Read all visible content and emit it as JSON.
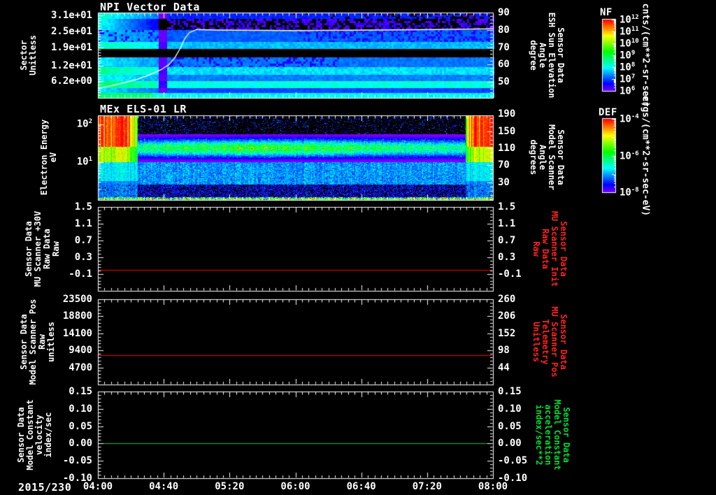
{
  "colors": {
    "background": "#000000",
    "foreground": "#ffffff",
    "red_label": "#ff2222",
    "red_line": "#ff0000",
    "green_label": "#00dd33",
    "green_line": "#00cc33",
    "overlay_line": "#ffffff"
  },
  "x_axis": {
    "date_label": "2015/230",
    "tick_labels": [
      "04:00",
      "04:40",
      "05:20",
      "06:00",
      "06:40",
      "07:20",
      "08:00"
    ]
  },
  "panel1": {
    "title": "NPI Vector Data",
    "ylabel_lines": [
      "Sector",
      "Unitless"
    ],
    "right_label_lines": [
      "Sensor Data",
      "ESH Sun Elevation",
      "Angle",
      "degree"
    ]
  },
  "panel2": {
    "title": "MEx ELS-01 LR",
    "ylabel_lines": [
      "Electron Energy",
      "eV"
    ],
    "right_label_lines": [
      "Sensor Data",
      "Model Scanner",
      "Angle",
      "degrees"
    ]
  },
  "panel3": {
    "ylabel_lines": [
      "Sensor Data",
      "MU Scanner +30V",
      "Raw Data",
      "Raw"
    ],
    "right_label_lines": [
      "Sensor Data",
      "MU Scanner Init",
      "Raw Data",
      "Raw"
    ]
  },
  "panel4": {
    "ylabel_lines": [
      "Sensor Data",
      "Model Scanner Pos",
      "Raw",
      "unitless"
    ],
    "right_label_lines": [
      "Sensor Data",
      "MU Scanner Pos",
      "Telemetry",
      "Unitless"
    ]
  },
  "panel5": {
    "ylabel_lines": [
      "Sensor Data",
      "Model Constant",
      "velocity",
      "index/sec"
    ],
    "right_label_lines": [
      "Sensor Data",
      "Model Constant",
      "acceleration",
      "index/sec**2"
    ]
  },
  "colorbar_nf": {
    "title": "NF",
    "unit": "cnts/(cm**2-sr-sec)",
    "tick_base": "10",
    "tick_exponents": [
      "12",
      "11",
      "10",
      "9",
      "8",
      "7",
      "6"
    ]
  },
  "colorbar_def": {
    "title": "DEF",
    "unit": "ergs/(cm**2-sr-sec-eV)",
    "tick_base": "10",
    "tick_exponents": [
      "-4",
      "-6",
      "-8"
    ]
  },
  "chart_data": [
    {
      "panel": 1,
      "type": "heatmap",
      "title": "NPI Vector Data",
      "x_range": [
        "2015/230 04:00",
        "2015/230 08:00"
      ],
      "y_axis": {
        "label": "Sector (Unitless)",
        "scale": "linear",
        "range": [
          0,
          32
        ],
        "ticks": [
          {
            "label": "3.1e+01",
            "value": 31
          },
          {
            "label": "2.5e+01",
            "value": 25
          },
          {
            "label": "1.9e+01",
            "value": 19
          },
          {
            "label": "1.2e+01",
            "value": 12
          },
          {
            "label": "6.2e+00",
            "value": 6.2
          }
        ]
      },
      "right_axis": {
        "label": "ESH Sun Elevation Angle (degree)",
        "range": [
          40.7,
          90
        ],
        "ticks": [
          90,
          80,
          70,
          60,
          50
        ]
      },
      "colorbar": "NF",
      "colorbar_range_exp": [
        6,
        12
      ],
      "overlay_series": {
        "name": "ESH Sun Elevation Angle",
        "units": "degree",
        "color": "#ffffff",
        "points": [
          [
            0,
            46
          ],
          [
            0.05,
            48.5
          ],
          [
            0.1,
            51.5
          ],
          [
            0.13,
            54
          ],
          [
            0.16,
            57
          ],
          [
            0.18,
            60
          ],
          [
            0.195,
            64
          ],
          [
            0.21,
            70
          ],
          [
            0.22,
            75
          ],
          [
            0.232,
            78.5
          ],
          [
            0.25,
            80.2
          ],
          [
            0.3,
            79.9
          ],
          [
            0.5,
            79.6
          ],
          [
            0.7,
            79.9
          ],
          [
            0.85,
            80.2
          ],
          [
            1,
            80.6
          ]
        ]
      },
      "bands": [
        [
          0,
          0.075,
          0.17,
          0.4,
          "blackright"
        ],
        [
          0.075,
          0.21,
          0,
          0.37,
          "purpledash"
        ],
        [
          0.21,
          0.35,
          0.22,
          0.3,
          "purplemix"
        ],
        [
          0.35,
          0.43,
          0.3,
          0.42,
          ""
        ],
        [
          0.43,
          0.53,
          0,
          0,
          "black"
        ],
        [
          0.53,
          0.64,
          0.24,
          0.34,
          "purpleleft"
        ],
        [
          0.64,
          0.73,
          0.33,
          0.44,
          ""
        ],
        [
          0.73,
          0.81,
          0.25,
          0.37,
          ""
        ],
        [
          0.81,
          0.89,
          0.38,
          0.47,
          ""
        ],
        [
          0.89,
          0.945,
          0.2,
          0.33,
          ""
        ],
        [
          0.945,
          1,
          0.36,
          0.5,
          "greencorner"
        ]
      ]
    },
    {
      "panel": 2,
      "type": "heatmap",
      "title": "MEx ELS-01 LR",
      "y_axis": {
        "label": "Electron Energy (eV)",
        "scale": "log",
        "range": [
          1,
          174
        ],
        "ticks": [
          {
            "label": "10^2",
            "value": 100
          },
          {
            "label": "10^1",
            "value": 10
          }
        ]
      },
      "right_axis": {
        "label": "Model Scanner Angle (degrees)",
        "ticks": [
          190,
          150,
          110,
          70,
          30
        ]
      },
      "colorbar": "DEF",
      "colorbar_range_exp": [
        -8,
        -4
      ],
      "features": {
        "left_blob_t_end": 0.075,
        "right_blob_t_start": 0.93,
        "blob_energy_min_log": 1.42,
        "mid_band_center_log": 1.38,
        "mid_band_sigma_log": 0.22,
        "energy_log_top": 2.24
      }
    },
    {
      "panel": 3,
      "type": "line",
      "y_axis": {
        "label": "MU Scanner +30V Raw Data (Raw)",
        "range": [
          -0.5,
          1.5
        ],
        "ticks": [
          {
            "label": "1.5",
            "value": 1.5
          },
          {
            "label": "1.1",
            "value": 1.1
          },
          {
            "label": "0.7",
            "value": 0.7
          },
          {
            "label": "0.3",
            "value": 0.3
          },
          {
            "label": "-0.1",
            "value": -0.1
          }
        ]
      },
      "right_axis": {
        "label": "MU Scanner Init Raw Data (Raw)",
        "ticks": [
          {
            "label": "1.5",
            "value": 1.5
          },
          {
            "label": "1.1",
            "value": 1.1
          },
          {
            "label": "0.7",
            "value": 0.7
          },
          {
            "label": "0.3",
            "value": 0.3
          },
          {
            "label": "-0.1",
            "value": -0.1
          }
        ]
      },
      "series": [
        {
          "name": "MU Scanner Init Raw Data",
          "color": "#ff0000",
          "constant_value": 0.0
        }
      ]
    },
    {
      "panel": 4,
      "type": "line",
      "y_axis": {
        "label": "Model Scanner Pos Raw (unitless)",
        "range": [
          0,
          23500
        ],
        "ticks": [
          {
            "label": "23500",
            "value": 23500
          },
          {
            "label": "18800",
            "value": 18800
          },
          {
            "label": "14100",
            "value": 14100
          },
          {
            "label": "9400",
            "value": 9400
          },
          {
            "label": "4700",
            "value": 4700
          }
        ]
      },
      "right_axis": {
        "label": "MU Scanner Pos Telemetry (Unitless)",
        "range": [
          -10,
          260
        ],
        "ticks": [
          {
            "label": "260",
            "value": 260
          },
          {
            "label": "206",
            "value": 206
          },
          {
            "label": "152",
            "value": 152
          },
          {
            "label": "98",
            "value": 98
          },
          {
            "label": "44",
            "value": 44
          }
        ]
      },
      "series": [
        {
          "name": "MU Scanner Pos Telemetry",
          "color": "#ff0000",
          "constant_value": 8100
        }
      ]
    },
    {
      "panel": 5,
      "type": "line",
      "y_axis": {
        "label": "Model Constant velocity (index/sec)",
        "range": [
          -0.1,
          0.15
        ],
        "ticks": [
          {
            "label": "0.15",
            "value": 0.15
          },
          {
            "label": "0.10",
            "value": 0.1
          },
          {
            "label": "0.05",
            "value": 0.05
          },
          {
            "label": "0.00",
            "value": 0
          },
          {
            "label": "-0.05",
            "value": -0.05
          },
          {
            "label": "-0.10",
            "value": -0.1
          }
        ]
      },
      "right_axis": {
        "label": "Model Constant acceleration (index/sec**2)",
        "ticks": [
          {
            "label": "0.15",
            "value": 0.15
          },
          {
            "label": "0.10",
            "value": 0.1
          },
          {
            "label": "0.05",
            "value": 0.05
          },
          {
            "label": "0.00",
            "value": 0
          },
          {
            "label": "-0.05",
            "value": -0.05
          },
          {
            "label": "-0.10",
            "value": -0.1
          }
        ]
      },
      "series": [
        {
          "name": "Model Constant acceleration",
          "color": "#00cc33",
          "constant_value": 0.0
        }
      ]
    }
  ]
}
